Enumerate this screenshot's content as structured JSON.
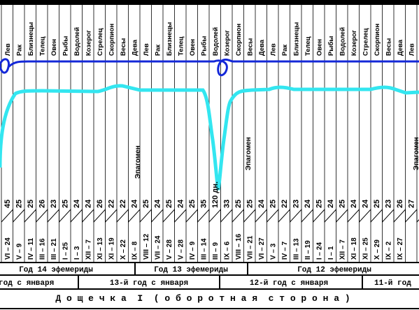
{
  "zodiac_signs": [
    "Лев",
    "Рак",
    "Близнецы",
    "Телец",
    "Овен",
    "Рыбы",
    "Водолей",
    "Козерог",
    "Стрелец",
    "Скорпион",
    "Весы",
    "Дева",
    "Лев",
    "Рак",
    "Близнецы",
    "Телец",
    "Овен",
    "Рыбы",
    "Водолей",
    "Козерог",
    "Скорпион",
    "Весы",
    "Дева",
    "Лев",
    "Рак",
    "Близнецы",
    "Телец",
    "Овен",
    "Рыбы",
    "Водолей",
    "Козерог",
    "Стрелец",
    "Скорпион",
    "Весы",
    "Дева",
    "Лев"
  ],
  "annotations": {
    "left": "Эпагомен",
    "middle": "Эпагомен",
    "right": "Эпагомен"
  },
  "day_counts": [
    "45",
    "25",
    "25",
    "26",
    "23",
    "25",
    "24",
    "24",
    "26",
    "22",
    "22",
    "24",
    "25",
    "24",
    "25",
    "24",
    "25",
    "35",
    "120 дн.",
    "33",
    "25",
    "25",
    "24",
    "25",
    "22",
    "23",
    "24",
    "25",
    "24",
    "25",
    "24",
    "24",
    "25",
    "23",
    "26",
    "27"
  ],
  "dates": [
    "VI – 24",
    "V – 9",
    "IV – 11",
    "III – 16",
    "III – 21",
    "I – 25",
    "I – 3",
    "XII – 7",
    "XI – 13",
    "XI – 19",
    "X – 22",
    "IX – 8",
    "VIII – 12",
    "VII – 24",
    "V – 28",
    "V – 28",
    "IV – 9",
    "III – 14",
    "III – 9",
    "IX – 6",
    "VIII – 16",
    "VII – 21",
    "VI – 27",
    "V – 3",
    "IV – 7",
    "III – 13",
    "II – 19",
    "I – 24",
    "I – 1",
    "XII – 7",
    "XI – 18",
    "XI – 25",
    "X – 29",
    "IX – 2",
    "IX – 27"
  ],
  "ephemeris_years": [
    "Год 14 эфемериды",
    "Год 13 эфемериды",
    "Год 12 эфемериды"
  ],
  "calendar_years": [
    "год с января",
    "13-й год с января",
    "12-й год с января",
    "11-й год"
  ],
  "title": "Д о щ е ч к а  I  ( о б о р о т н а я  с т о р о н а )",
  "colors": {
    "upper_line": "#1428d8",
    "lower_line": "#33e6f0",
    "ink": "#000000"
  }
}
